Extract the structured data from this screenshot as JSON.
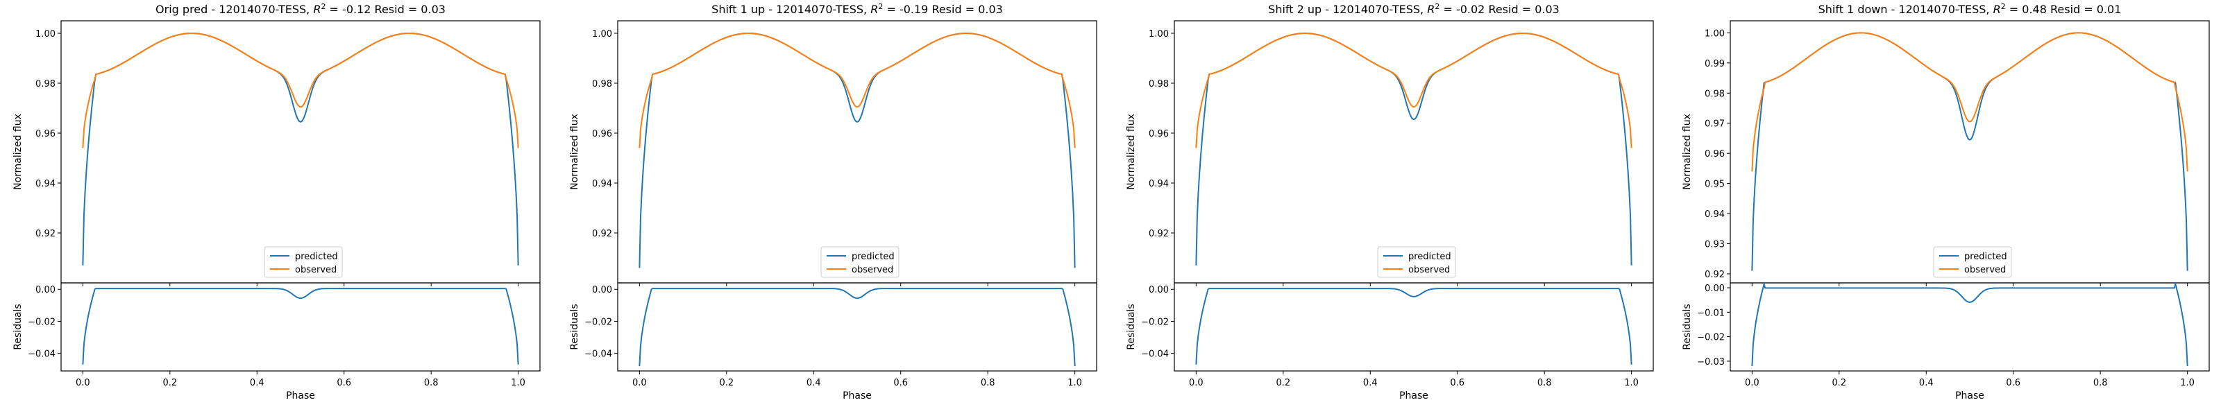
{
  "colors": {
    "predicted": "#1f77b4",
    "observed": "#ff7f0e"
  },
  "chart_data": [
    {
      "type": "line",
      "title_text": "Orig pred - 12014070-TESS, ",
      "r2_value": "-0.12",
      "resid_text": "Resid = 0.03",
      "ylabel_top": "Normalized flux",
      "ylabel_bottom": "Residuals",
      "xlabel": "Phase",
      "xlim": [
        -0.05,
        1.05
      ],
      "xticks": [
        "0.0",
        "0.2",
        "0.4",
        "0.6",
        "0.8",
        "1.0"
      ],
      "ylim_top": [
        0.9,
        1.005
      ],
      "yticks_top": [
        "0.92",
        "0.94",
        "0.96",
        "0.98",
        "1.00"
      ],
      "ylim_bottom": [
        -0.051,
        0.004
      ],
      "yticks_bottom": [
        "−0.04",
        "−0.02",
        "0.00"
      ],
      "legend": {
        "placement": "lower center",
        "entries": [
          "predicted",
          "observed"
        ]
      },
      "params": {
        "predicted": {
          "min": 0.907,
          "eclipse_depth": 0.0185,
          "edge": 0.982,
          "shoulder": 0.985
        },
        "observed": {
          "min": 0.954,
          "eclipse_depth": 0.0125,
          "edge": 0.982,
          "shoulder": 0.985
        }
      },
      "residual_range": [
        -0.047,
        0.0005
      ]
    },
    {
      "type": "line",
      "title_text": "Shift 1 up - 12014070-TESS, ",
      "r2_value": "-0.19",
      "resid_text": "Resid = 0.03",
      "ylabel_top": "Normalized flux",
      "ylabel_bottom": "Residuals",
      "xlabel": "Phase",
      "xlim": [
        -0.05,
        1.05
      ],
      "xticks": [
        "0.0",
        "0.2",
        "0.4",
        "0.6",
        "0.8",
        "1.0"
      ],
      "ylim_top": [
        0.9,
        1.005
      ],
      "yticks_top": [
        "0.92",
        "0.94",
        "0.96",
        "0.98",
        "1.00"
      ],
      "ylim_bottom": [
        -0.051,
        0.004
      ],
      "yticks_bottom": [
        "−0.04",
        "−0.02",
        "0.00"
      ],
      "legend": {
        "placement": "lower center",
        "entries": [
          "predicted",
          "observed"
        ]
      },
      "params": {
        "predicted": {
          "min": 0.906,
          "eclipse_depth": 0.0185,
          "edge": 0.982,
          "shoulder": 0.985
        },
        "observed": {
          "min": 0.954,
          "eclipse_depth": 0.0125,
          "edge": 0.982,
          "shoulder": 0.985
        }
      },
      "residual_range": [
        -0.048,
        0.0005
      ]
    },
    {
      "type": "line",
      "title_text": "Shift 2 up - 12014070-TESS, ",
      "r2_value": "-0.02",
      "resid_text": "Resid = 0.03",
      "ylabel_top": "Normalized flux",
      "ylabel_bottom": "Residuals",
      "xlabel": "Phase",
      "xlim": [
        -0.05,
        1.05
      ],
      "xticks": [
        "0.0",
        "0.2",
        "0.4",
        "0.6",
        "0.8",
        "1.0"
      ],
      "ylim_top": [
        0.9,
        1.005
      ],
      "yticks_top": [
        "0.92",
        "0.94",
        "0.96",
        "0.98",
        "1.00"
      ],
      "ylim_bottom": [
        -0.051,
        0.004
      ],
      "yticks_bottom": [
        "−0.04",
        "−0.02",
        "0.00"
      ],
      "legend": {
        "placement": "lower center",
        "entries": [
          "predicted",
          "observed"
        ]
      },
      "params": {
        "predicted": {
          "min": 0.907,
          "eclipse_depth": 0.0175,
          "edge": 0.982,
          "shoulder": 0.985
        },
        "observed": {
          "min": 0.954,
          "eclipse_depth": 0.0125,
          "edge": 0.982,
          "shoulder": 0.985
        }
      },
      "residual_range": [
        -0.047,
        0.0005
      ]
    },
    {
      "type": "line",
      "title_text": "Shift 1 down - 12014070-TESS, ",
      "r2_value": "0.48",
      "resid_text": "Resid = 0.01",
      "ylabel_top": "Normalized flux",
      "ylabel_bottom": "Residuals",
      "xlabel": "Phase",
      "xlim": [
        -0.05,
        1.05
      ],
      "xticks": [
        "0.0",
        "0.2",
        "0.4",
        "0.6",
        "0.8",
        "1.0"
      ],
      "ylim_top": [
        0.917,
        1.004
      ],
      "yticks_top": [
        "0.92",
        "0.93",
        "0.94",
        "0.95",
        "0.96",
        "0.97",
        "0.98",
        "0.99",
        "1.00"
      ],
      "ylim_bottom": [
        -0.034,
        0.002
      ],
      "yticks_bottom": [
        "−0.03",
        "−0.02",
        "−0.01",
        "0.00"
      ],
      "legend": {
        "placement": "lower center",
        "entries": [
          "predicted",
          "observed"
        ]
      },
      "params": {
        "predicted": {
          "min": 0.921,
          "eclipse_depth": 0.0185,
          "edge": 0.984,
          "shoulder": 0.987
        },
        "observed": {
          "min": 0.954,
          "eclipse_depth": 0.0125,
          "edge": 0.982,
          "shoulder": 0.985
        }
      },
      "residual_range": [
        -0.032,
        0.0015
      ]
    }
  ]
}
